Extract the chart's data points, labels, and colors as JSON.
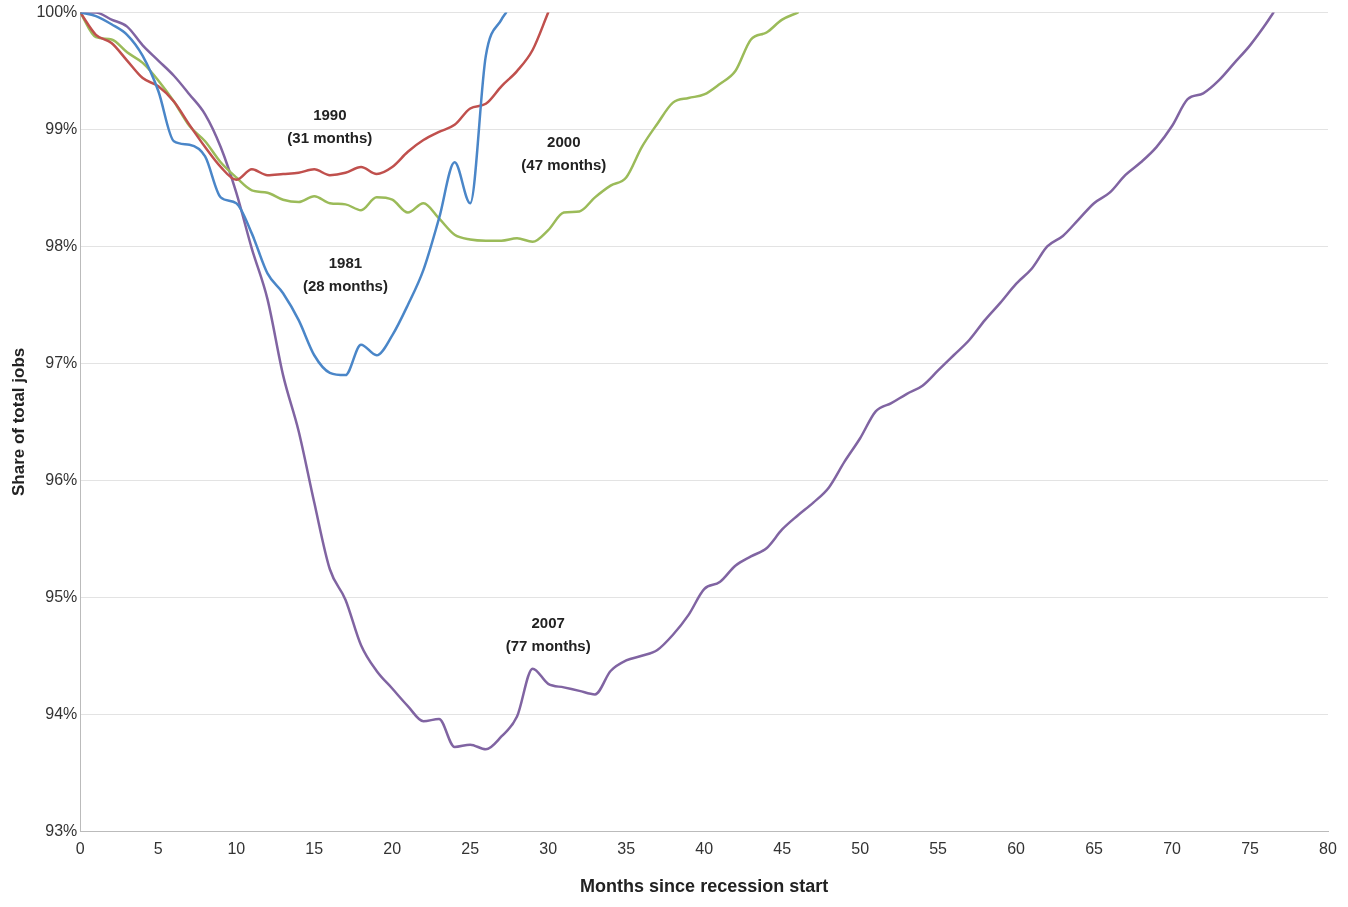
{
  "chart_data": {
    "type": "line",
    "xlabel": "Months since recession start",
    "ylabel": "Share of total jobs",
    "xlim": [
      0,
      80
    ],
    "xticks": [
      0,
      5,
      10,
      15,
      20,
      25,
      30,
      35,
      40,
      45,
      50,
      55,
      60,
      65,
      70,
      75,
      80
    ],
    "ylim": [
      93,
      100
    ],
    "yticks": [
      {
        "value": 93,
        "label": "93%"
      },
      {
        "value": 94,
        "label": "94%"
      },
      {
        "value": 95,
        "label": "95%"
      },
      {
        "value": 96,
        "label": "96%"
      },
      {
        "value": 97,
        "label": "97%"
      },
      {
        "value": 98,
        "label": "98%"
      },
      {
        "value": 99,
        "label": "99%"
      },
      {
        "value": 100,
        "label": "100%"
      }
    ],
    "grid": "y",
    "legend": false,
    "marker": "none",
    "line_style": "solid",
    "series": [
      {
        "name": "1981\n(28 months)",
        "color": "#4a86c8",
        "x": [
          0,
          1,
          2,
          3,
          4,
          5,
          6,
          7,
          8,
          9,
          10,
          11,
          12,
          13,
          14,
          15,
          16,
          17,
          18,
          19,
          20,
          21,
          22,
          23,
          24,
          25,
          26,
          27,
          27.3
        ],
        "values": [
          100,
          99.97,
          99.9,
          99.81,
          99.63,
          99.33,
          98.9,
          98.87,
          98.77,
          98.42,
          98.37,
          98.11,
          97.77,
          97.6,
          97.37,
          97.07,
          96.92,
          96.9,
          97.16,
          97.07,
          97.24,
          97.5,
          97.8,
          98.24,
          98.72,
          98.37,
          99.63,
          99.94,
          100
        ]
      },
      {
        "name": "1990\n(31 months)",
        "color": "#c0504d",
        "x": [
          0,
          1,
          2,
          3,
          4,
          5,
          6,
          7,
          8,
          9,
          10,
          11,
          12,
          13,
          14,
          15,
          16,
          17,
          18,
          19,
          20,
          21,
          22,
          23,
          24,
          25,
          26,
          27,
          28,
          29,
          30
        ],
        "values": [
          100,
          99.81,
          99.74,
          99.59,
          99.44,
          99.37,
          99.24,
          99.04,
          98.85,
          98.68,
          98.57,
          98.66,
          98.61,
          98.62,
          98.63,
          98.66,
          98.61,
          98.63,
          98.68,
          98.62,
          98.68,
          98.81,
          98.91,
          98.98,
          99.04,
          99.18,
          99.22,
          99.37,
          99.5,
          99.68,
          100
        ]
      },
      {
        "name": "2000\n(47 months)",
        "color": "#9bbb59",
        "x": [
          0,
          1,
          2,
          3,
          4,
          5,
          6,
          7,
          8,
          9,
          10,
          11,
          12,
          13,
          14,
          15,
          16,
          17,
          18,
          19,
          20,
          21,
          22,
          23,
          24,
          25,
          26,
          27,
          28,
          29,
          30,
          31,
          32,
          33,
          34,
          35,
          36,
          37,
          38,
          39,
          40,
          41,
          42,
          43,
          44,
          45,
          46
        ],
        "values": [
          100,
          99.79,
          99.77,
          99.66,
          99.57,
          99.42,
          99.24,
          99.03,
          98.9,
          98.72,
          98.59,
          98.48,
          98.46,
          98.4,
          98.38,
          98.43,
          98.37,
          98.36,
          98.31,
          98.42,
          98.4,
          98.29,
          98.37,
          98.24,
          98.1,
          98.06,
          98.05,
          98.05,
          98.07,
          98.04,
          98.14,
          98.29,
          98.3,
          98.42,
          98.52,
          98.59,
          98.85,
          99.05,
          99.23,
          99.27,
          99.3,
          99.39,
          99.5,
          99.77,
          99.83,
          99.94,
          100
        ]
      },
      {
        "name": "2007\n(77 months)",
        "color": "#8064a2",
        "x": [
          0,
          1,
          2,
          3,
          4,
          5,
          6,
          7,
          8,
          9,
          10,
          11,
          12,
          13,
          14,
          15,
          16,
          17,
          18,
          19,
          20,
          21,
          22,
          23,
          24,
          25,
          26,
          27,
          28,
          29,
          30,
          31,
          32,
          33,
          34,
          35,
          36,
          37,
          38,
          39,
          40,
          41,
          42,
          43,
          44,
          45,
          46,
          47,
          48,
          49,
          50,
          51,
          52,
          53,
          54,
          55,
          56,
          57,
          58,
          59,
          60,
          61,
          62,
          63,
          64,
          65,
          66,
          67,
          68,
          69,
          70,
          71,
          72,
          73,
          74,
          75,
          76,
          76.5
        ],
        "values": [
          100,
          100,
          99.94,
          99.88,
          99.72,
          99.59,
          99.46,
          99.3,
          99.13,
          98.85,
          98.46,
          97.98,
          97.55,
          96.9,
          96.42,
          95.81,
          95.24,
          94.98,
          94.59,
          94.37,
          94.22,
          94.07,
          93.94,
          93.96,
          93.72,
          93.74,
          93.7,
          93.81,
          93.98,
          94.39,
          94.26,
          94.23,
          94.2,
          94.17,
          94.37,
          94.46,
          94.5,
          94.55,
          94.68,
          94.85,
          95.07,
          95.13,
          95.27,
          95.35,
          95.42,
          95.58,
          95.7,
          95.81,
          95.94,
          96.16,
          96.36,
          96.59,
          96.66,
          96.74,
          96.81,
          96.94,
          97.07,
          97.2,
          97.37,
          97.52,
          97.68,
          97.81,
          98.0,
          98.09,
          98.23,
          98.37,
          98.46,
          98.61,
          98.72,
          98.85,
          99.03,
          99.26,
          99.31,
          99.42,
          99.57,
          99.72,
          99.9,
          100
        ]
      }
    ]
  }
}
